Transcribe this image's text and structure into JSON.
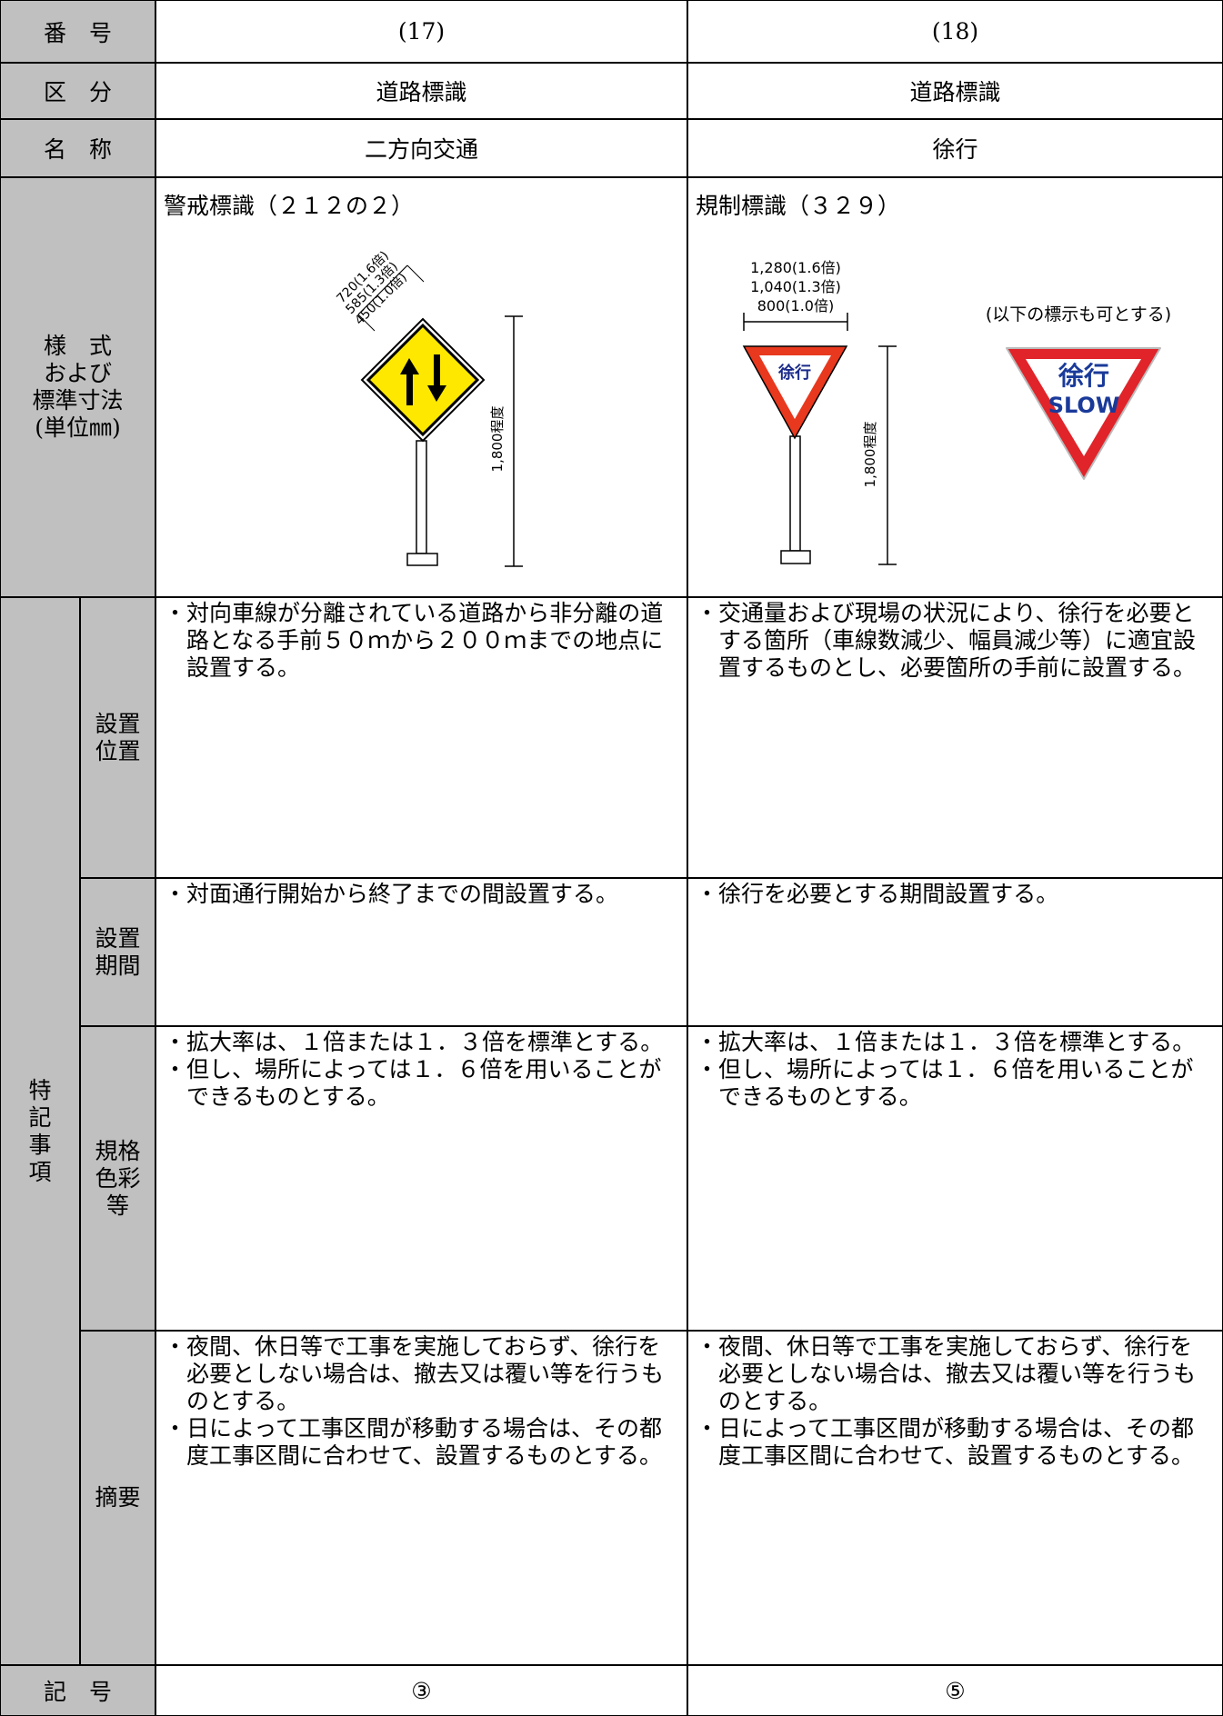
{
  "header": {
    "label": "番　号",
    "columns": [
      "(17)",
      "(18)"
    ]
  },
  "category": {
    "label": "区　分",
    "values": [
      "道路標識",
      "道路標識"
    ]
  },
  "name": {
    "label": "名　称",
    "values": [
      "二方向交通",
      "徐行"
    ]
  },
  "style": {
    "label": [
      "様　式",
      "および",
      "標準寸法",
      "(単位㎜)"
    ],
    "signs": [
      {
        "caption": "警戒標識（２１２の２）",
        "dimensions": [
          "720(1.6倍)",
          "585(1.3倍)",
          "450(1.0倍)"
        ],
        "height": "1,800程度"
      },
      {
        "caption": "規制標識（３２９）",
        "dimensions": [
          "1,280(1.6倍)",
          "1,040(1.3倍)",
          "800(1.0倍)"
        ],
        "height": "1,800程度",
        "symbol": "徐行",
        "alt_note": "(以下の標示も可とする)",
        "alt_text": [
          "徐行",
          "SLOW"
        ]
      }
    ]
  },
  "notes": {
    "label": [
      "特",
      "記",
      "事",
      "項"
    ],
    "rows": [
      {
        "label": [
          "設置",
          "位置"
        ],
        "values": [
          [
            "・対向車線が分離されている道路から非分離の道路となる手前５０ｍから２００ｍまでの地点に設置する。"
          ],
          [
            "・交通量および現場の状況により、徐行を必要とする箇所（車線数減少、幅員減少等）に適宜設置するものとし、必要箇所の手前に設置する。"
          ]
        ]
      },
      {
        "label": [
          "設置",
          "期間"
        ],
        "values": [
          [
            "・対面通行開始から終了までの間設置する。"
          ],
          [
            "・徐行を必要とする期間設置する。"
          ]
        ]
      },
      {
        "label": [
          "規格",
          "色彩",
          "等"
        ],
        "values": [
          [
            "・拡大率は、１倍または１．３倍を標準とする。",
            "・但し、場所によっては１．６倍を用いることができるものとする。"
          ],
          [
            "・拡大率は、１倍または１．３倍を標準とする。",
            "・但し、場所によっては１．６倍を用いることができるものとする。"
          ]
        ]
      },
      {
        "label": [
          "摘要"
        ],
        "values": [
          [
            "・夜間、休日等で工事を実施しておらず、徐行を必要としない場合は、撤去又は覆い等を行うものとする。",
            "・日によって工事区間が移動する場合は、その都度工事区間に合わせて、設置するものとする。"
          ],
          [
            "・夜間、休日等で工事を実施しておらず、徐行を必要としない場合は、撤去又は覆い等を行うものとする。",
            "・日によって工事区間が移動する場合は、その都度工事区間に合わせて、設置するものとする。"
          ]
        ]
      }
    ]
  },
  "symbol": {
    "label": "記　号",
    "values": [
      "③",
      "⑤"
    ]
  }
}
